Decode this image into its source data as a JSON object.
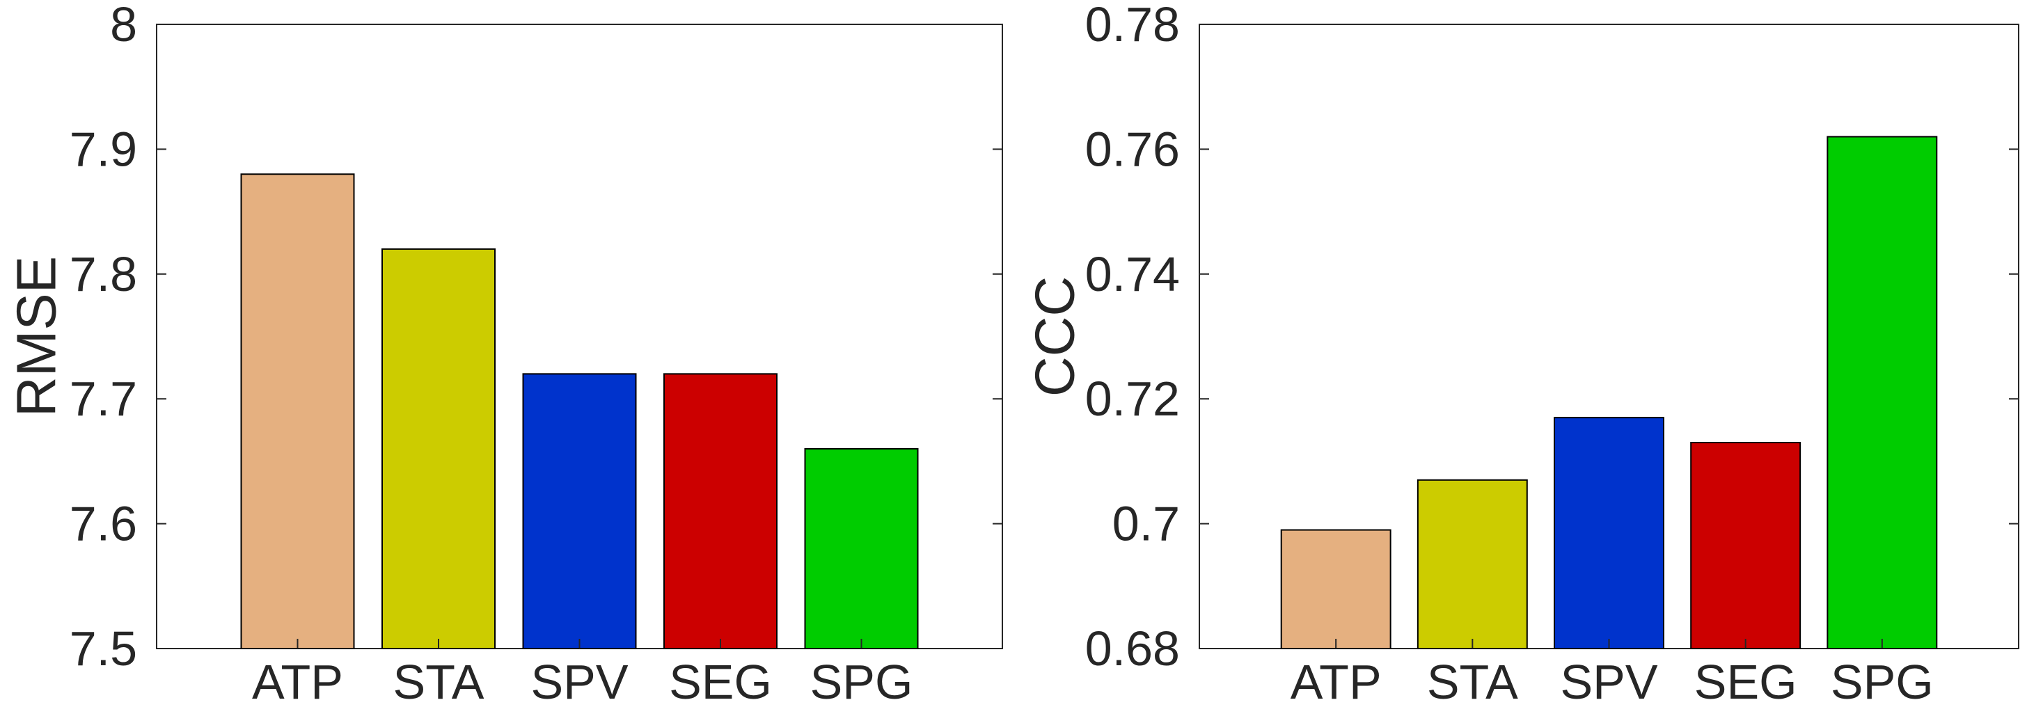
{
  "chart_data": [
    {
      "type": "bar",
      "title": "",
      "xlabel": "",
      "ylabel": "RMSE",
      "categories": [
        "ATP",
        "STA",
        "SPV",
        "SEG",
        "SPG"
      ],
      "values": [
        7.88,
        7.82,
        7.72,
        7.72,
        7.66
      ],
      "colors": [
        "#E5B080",
        "#CCCC00",
        "#0033CC",
        "#CC0000",
        "#00CC00"
      ],
      "ylim": [
        7.5,
        8.0
      ],
      "yticks": [
        "7.5",
        "7.6",
        "7.7",
        "7.8",
        "7.9",
        "8"
      ],
      "grid": false,
      "legend": "none"
    },
    {
      "type": "bar",
      "title": "",
      "xlabel": "",
      "ylabel": "CCC",
      "categories": [
        "ATP",
        "STA",
        "SPV",
        "SEG",
        "SPG"
      ],
      "values": [
        0.699,
        0.707,
        0.717,
        0.713,
        0.762
      ],
      "colors": [
        "#E5B080",
        "#CCCC00",
        "#0033CC",
        "#CC0000",
        "#00CC00"
      ],
      "ylim": [
        0.68,
        0.78
      ],
      "yticks": [
        "0.68",
        "0.7",
        "0.72",
        "0.74",
        "0.76",
        "0.78"
      ],
      "grid": false,
      "legend": "none"
    }
  ]
}
